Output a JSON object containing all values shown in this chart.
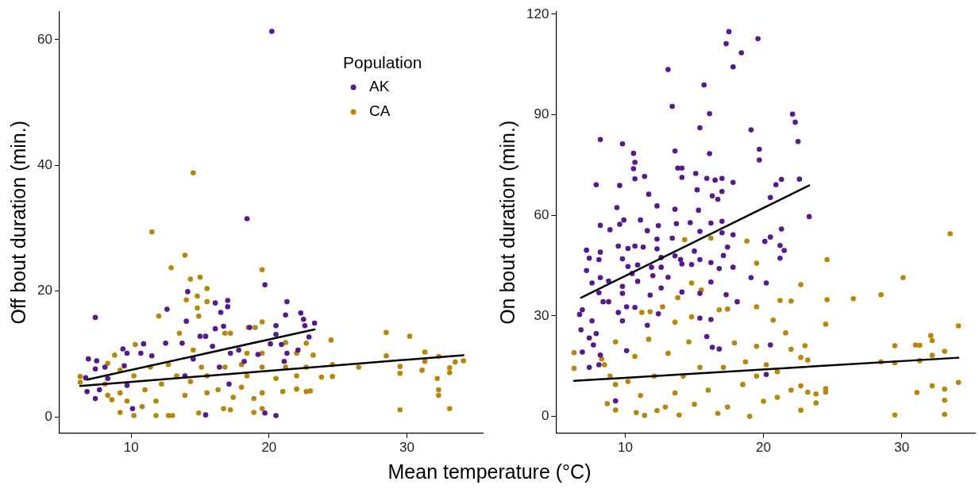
{
  "chart_data": [
    {
      "type": "scatter",
      "ylabel": "Off bout duration (min.)",
      "xlabel": "Mean temperature (°C)",
      "legend_title": "Population",
      "legend": "top right",
      "marker": "circle",
      "xlim": [
        4.8,
        35.5
      ],
      "ylim": [
        -2.6,
        64.4
      ],
      "xticks": [
        10,
        20,
        30
      ],
      "yticks": [
        0,
        20,
        40,
        60
      ],
      "series": [
        {
          "name": "AK",
          "color": "#58198f",
          "x": [
            20.2,
            18.4,
            19.7,
            7.4,
            12.6,
            14.1,
            14.0,
            16.1,
            17.0,
            17.0,
            16.5,
            21.3,
            21.2,
            22.3,
            22.5,
            23.3,
            22.6,
            22.9,
            20.5,
            20.5,
            20.1,
            18.6,
            16.7,
            16.1,
            15.0,
            15.4,
            15.9,
            17.8,
            17.2,
            12.5,
            10.9,
            9.4,
            9.7,
            10.7,
            6.9,
            7.5,
            8.1,
            7.4,
            6.7,
            6.8,
            7.4,
            7.7,
            8.3,
            9.5,
            11.5,
            13.7,
            14.5,
            18.2,
            21.1,
            21.3,
            22.1,
            20.9,
            10.1,
            15.4,
            19.7,
            20.5,
            13.9,
            16.4,
            19.2,
            9.7,
            17.1
          ],
          "values": [
            61.3,
            31.5,
            21.0,
            15.8,
            17.1,
            19.9,
            15.2,
            18.1,
            18.5,
            17.5,
            16.6,
            18.3,
            16.2,
            16.5,
            15.5,
            14.9,
            14.5,
            12.7,
            14.5,
            13.1,
            11.6,
            14.2,
            14.4,
            14.0,
            12.8,
            12.8,
            11.2,
            10.6,
            10.1,
            11.7,
            11.6,
            10.8,
            10.1,
            10.1,
            9.2,
            8.9,
            7.9,
            7.6,
            6.2,
            4.0,
            2.9,
            4.3,
            6.1,
            8.1,
            9.7,
            11.7,
            9.2,
            8.8,
            8.8,
            10.1,
            10.6,
            11.5,
            1.3,
            0.3,
            0.6,
            0.2,
            6.5,
            7.9,
            9.9,
            5.0,
            5.2
          ]
        },
        {
          "name": "CA",
          "color": "#b8860b",
          "x": [
            14.5,
            11.5,
            13.9,
            12.9,
            19.5,
            14.3,
            15.0,
            15.5,
            14.8,
            14.0,
            15.5,
            14.8,
            12.0,
            14.9,
            19.5,
            18.5,
            19.0,
            13.5,
            17.2,
            24.5,
            28.5,
            30.2,
            28.5,
            31.3,
            31.3,
            32.3,
            33.5,
            34.1,
            33.1,
            33.1,
            31.1,
            29.5,
            29.5,
            26.5,
            24.6,
            24.6,
            23.8,
            32.2,
            32.3,
            32.3,
            29.5,
            33.1,
            23.2,
            22.7,
            22.7,
            22.7,
            23.0,
            22.0,
            22.0,
            22.0,
            21.2,
            21.2,
            21.0,
            19.5,
            19.5,
            19.5,
            19.5,
            18.9,
            18.9,
            18.4,
            18.4,
            18.0,
            17.4,
            16.7,
            17.2,
            16.8,
            16.3,
            15.5,
            15.5,
            14.9,
            15.1,
            14.5,
            14.3,
            13.9,
            13.3,
            13.0,
            12.7,
            12.7,
            12.2,
            11.8,
            11.8,
            11.4,
            11.0,
            10.8,
            10.3,
            10.2,
            10.2,
            9.7,
            9.2,
            9.2,
            9.2,
            8.8,
            8.6,
            8.3,
            8.3,
            6.3,
            6.3,
            8.1,
            18.0,
            20.5,
            16.8
          ],
          "values": [
            38.8,
            29.4,
            25.7,
            23.7,
            23.4,
            21.9,
            22.2,
            20.4,
            19.2,
            18.6,
            18.3,
            17.3,
            16.0,
            16.0,
            15.1,
            14.2,
            14.2,
            13.3,
            13.3,
            12.2,
            13.4,
            12.8,
            9.7,
            10.3,
            8.8,
            9.6,
            8.7,
            8.9,
            7.8,
            7.0,
            7.4,
            8.0,
            6.9,
            7.9,
            8.3,
            6.4,
            6.3,
            6.1,
            4.3,
            3.4,
            1.1,
            1.3,
            9.8,
            11.7,
            7.9,
            4.0,
            4.1,
            10.1,
            6.5,
            4.4,
            11.8,
            7.9,
            4.0,
            10.1,
            7.9,
            3.8,
            1.3,
            2.9,
            0.7,
            10.1,
            6.5,
            4.7,
            3.1,
            1.3,
            1.1,
            7.9,
            4.3,
            6.5,
            3.8,
            0.6,
            7.9,
            10.6,
            5.6,
            3.4,
            6.5,
            0.2,
            0.2,
            8.3,
            5.2,
            0.2,
            2.5,
            7.9,
            4.3,
            1.6,
            11.5,
            0.2,
            6.5,
            2.5,
            0.7,
            3.8,
            7.4,
            9.8,
            2.7,
            3.4,
            8.5,
            6.4,
            5.5,
            5.2,
            8.3,
            6.1,
            13.3
          ]
        },
        {
          "type": "line",
          "color": "#000000",
          "marker": "none",
          "x": [
            6.8,
            23.3
          ],
          "values": [
            5.9,
            13.9
          ]
        },
        {
          "type": "line",
          "color": "#000000",
          "marker": "none",
          "x": [
            6.3,
            34.1
          ],
          "values": [
            4.9,
            9.8
          ]
        }
      ]
    },
    {
      "type": "scatter",
      "ylabel": "On bout duration (min.)",
      "marker": "circle",
      "xlim": [
        5.0,
        35.3
      ],
      "ylim": [
        -5,
        120.7
      ],
      "xticks": [
        10,
        20,
        30
      ],
      "yticks": [
        0,
        30,
        60,
        90,
        120
      ],
      "series": [
        {
          "color": "#58198f",
          "x": [
            17.5,
            17.3,
            19.6,
            18.4,
            17.8,
            13.1,
            15.7,
            13.4,
            16.1,
            22.1,
            22.3,
            15.4,
            19.1,
            22.5,
            8.2,
            9.8,
            19.7,
            19.7,
            10.6,
            10.7,
            10.6,
            13.6,
            16.1,
            13.8,
            14.1,
            14.1,
            15.1,
            15.9,
            16.5,
            17.0,
            17.8,
            22.6,
            21.3,
            20.9,
            20.5,
            7.9,
            9.6,
            10.7,
            11.4,
            11.7,
            15.2,
            16.3,
            17.0,
            16.7,
            23.3,
            9.4,
            12.3,
            13.6,
            15.3,
            9.9,
            11.1,
            8.2,
            8.9,
            9.6,
            11.6,
            12.4,
            13.7,
            14.7,
            16.2,
            17.0,
            15.4,
            17.0,
            17.8,
            12.3,
            13.4,
            20.1,
            20.5,
            21.3,
            21.2,
            21.5,
            21.2,
            7.2,
            8.2,
            9.5,
            10.7,
            10.2,
            11.3,
            12.3,
            17.4,
            7.4,
            8.1,
            9.8,
            12.6,
            13.6,
            14.0,
            15.0,
            15.4,
            17.1,
            7.2,
            10.2,
            10.9,
            11.9,
            12.6,
            14.1,
            14.8,
            16.2,
            17.8,
            8.2,
            8.8,
            9.8,
            10.5,
            12.0,
            13.1,
            16.8,
            19.1,
            20.2,
            16.2,
            7.6,
            8.1,
            9.8,
            10.9,
            11.8,
            12.6,
            14.1,
            15.4,
            6.9,
            6.7,
            7.6,
            8.4,
            8.8,
            9.5,
            10.1,
            10.7,
            12.4,
            11.6,
            9.8,
            6.8,
            7.4,
            7.9,
            7.7,
            6.9,
            7.4,
            8.1,
            8.2,
            16.2,
            15.4,
            15.9,
            16.3,
            16.8,
            17.3,
            18.1,
            20.5,
            20.2,
            9.3,
            10.1
          ],
          "values": [
            114.8,
            111.2,
            112.7,
            108.5,
            104.3,
            103.5,
            98.9,
            92.5,
            90.3,
            90.2,
            87.8,
            86.1,
            85.5,
            82.0,
            82.6,
            81.3,
            79.7,
            76.5,
            78.5,
            75.8,
            73.9,
            79.2,
            78.4,
            74.1,
            74.1,
            71.3,
            72.5,
            71.0,
            70.5,
            71.0,
            69.8,
            70.8,
            70.7,
            69.1,
            65.3,
            69.1,
            68.9,
            70.9,
            71.6,
            66.3,
            67.6,
            65.8,
            67.1,
            64.8,
            59.6,
            62.3,
            62.8,
            61.8,
            61.5,
            58.6,
            58.6,
            57.0,
            55.7,
            57.3,
            55.4,
            56.9,
            57.5,
            57.8,
            57.7,
            58.2,
            55.2,
            54.8,
            54.2,
            52.9,
            53.2,
            52.2,
            53.5,
            55.9,
            51.0,
            49.5,
            47.2,
            49.6,
            49.0,
            50.8,
            50.8,
            50.1,
            50.5,
            50.0,
            50.5,
            47.2,
            46.8,
            47.0,
            47.4,
            47.9,
            46.8,
            49.3,
            46.8,
            48.0,
            43.5,
            44.7,
            45.2,
            44.5,
            44.5,
            45.5,
            45.3,
            45.9,
            44.5,
            41.4,
            40.4,
            38.8,
            42.6,
            42.0,
            41.5,
            44.1,
            41.4,
            39.8,
            40.1,
            39.8,
            36.9,
            36.7,
            40.3,
            36.2,
            38.3,
            37.1,
            36.7,
            31.8,
            30.4,
            28.5,
            34.2,
            34.2,
            31.0,
            32.7,
            32.5,
            30.6,
            27.2,
            28.5,
            25.8,
            23.4,
            24.7,
            21.3,
            19.2,
            14.6,
            15.4,
            18.3,
            28.9,
            29.3,
            23.8,
            20.6,
            20.1,
            36.3,
            34.2,
            21.3,
            12.5,
            4.6,
            19.6
          ]
        },
        {
          "color": "#b8860b",
          "x": [
            33.5,
            24.6,
            30.1,
            22.7,
            28.5,
            26.5,
            24.6,
            21.2,
            22.0,
            16.2,
            14.3,
            18.8,
            19.5,
            14.8,
            15.5,
            13.8,
            12.7,
            11.2,
            11.8,
            19.5,
            16.8,
            17.4,
            20.7,
            24.5,
            34.1,
            21.6,
            32.1,
            32.2,
            31.0,
            31.3,
            29.5,
            33.1,
            32.2,
            31.3,
            28.5,
            29.5,
            34.1,
            32.2,
            33.1,
            31.1,
            33.1,
            29.5,
            33.1,
            24.5,
            24.5,
            23.8,
            23.8,
            23.2,
            23.2,
            23.0,
            22.7,
            22.7,
            22.7,
            22.0,
            22.0,
            21.0,
            21.0,
            20.0,
            19.0,
            19.5,
            19.5,
            18.7,
            18.5,
            17.9,
            17.4,
            16.7,
            16.0,
            15.4,
            15.0,
            14.6,
            14.2,
            13.9,
            13.6,
            13.1,
            12.9,
            12.3,
            12.1,
            11.7,
            11.4,
            11.1,
            10.8,
            10.7,
            10.2,
            9.3,
            9.3,
            9.3,
            8.7,
            8.9,
            8.3,
            8.5,
            6.3,
            6.3,
            13.6,
            14.8,
            17.1,
            20.2
          ],
          "values": [
            54.5,
            46.8,
            41.4,
            39.3,
            36.3,
            35.1,
            34.8,
            34.6,
            34.4,
            53.2,
            52.7,
            52.3,
            45.7,
            39.8,
            37.7,
            35.4,
            32.7,
            31.0,
            31.2,
            32.7,
            31.8,
            32.0,
            28.7,
            27.5,
            27.0,
            24.9,
            24.1,
            22.6,
            21.3,
            21.2,
            21.1,
            19.4,
            18.2,
            16.6,
            16.3,
            16.0,
            10.1,
            9.1,
            8.1,
            7.1,
            4.8,
            0.4,
            0.6,
            8.3,
            7.2,
            6.7,
            4.0,
            7.2,
            16.8,
            21.1,
            17.6,
            9.1,
            1.8,
            20.0,
            7.8,
            13.3,
            5.7,
            4.5,
            0.0,
            20.9,
            12.0,
            16.3,
            9.5,
            21.9,
            2.8,
            0.9,
            7.8,
            14.6,
            3.6,
            22.2,
            12.0,
            0.4,
            7.0,
            18.8,
            2.8,
            1.7,
            12.0,
            23.0,
            0.3,
            6.2,
            1.1,
            17.9,
            10.4,
            1.9,
            9.5,
            22.2,
            3.8,
            12.0,
            17.1,
            15.4,
            19.0,
            14.3,
            28.1,
            29.7,
            14.6,
            15.4
          ]
        },
        {
          "type": "line",
          "color": "#000000",
          "marker": "none",
          "x": [
            6.8,
            23.3
          ],
          "values": [
            35.4,
            68.9
          ]
        },
        {
          "type": "line",
          "color": "#000000",
          "marker": "none",
          "x": [
            6.3,
            34.1
          ],
          "values": [
            10.6,
            17.5
          ]
        }
      ]
    }
  ]
}
